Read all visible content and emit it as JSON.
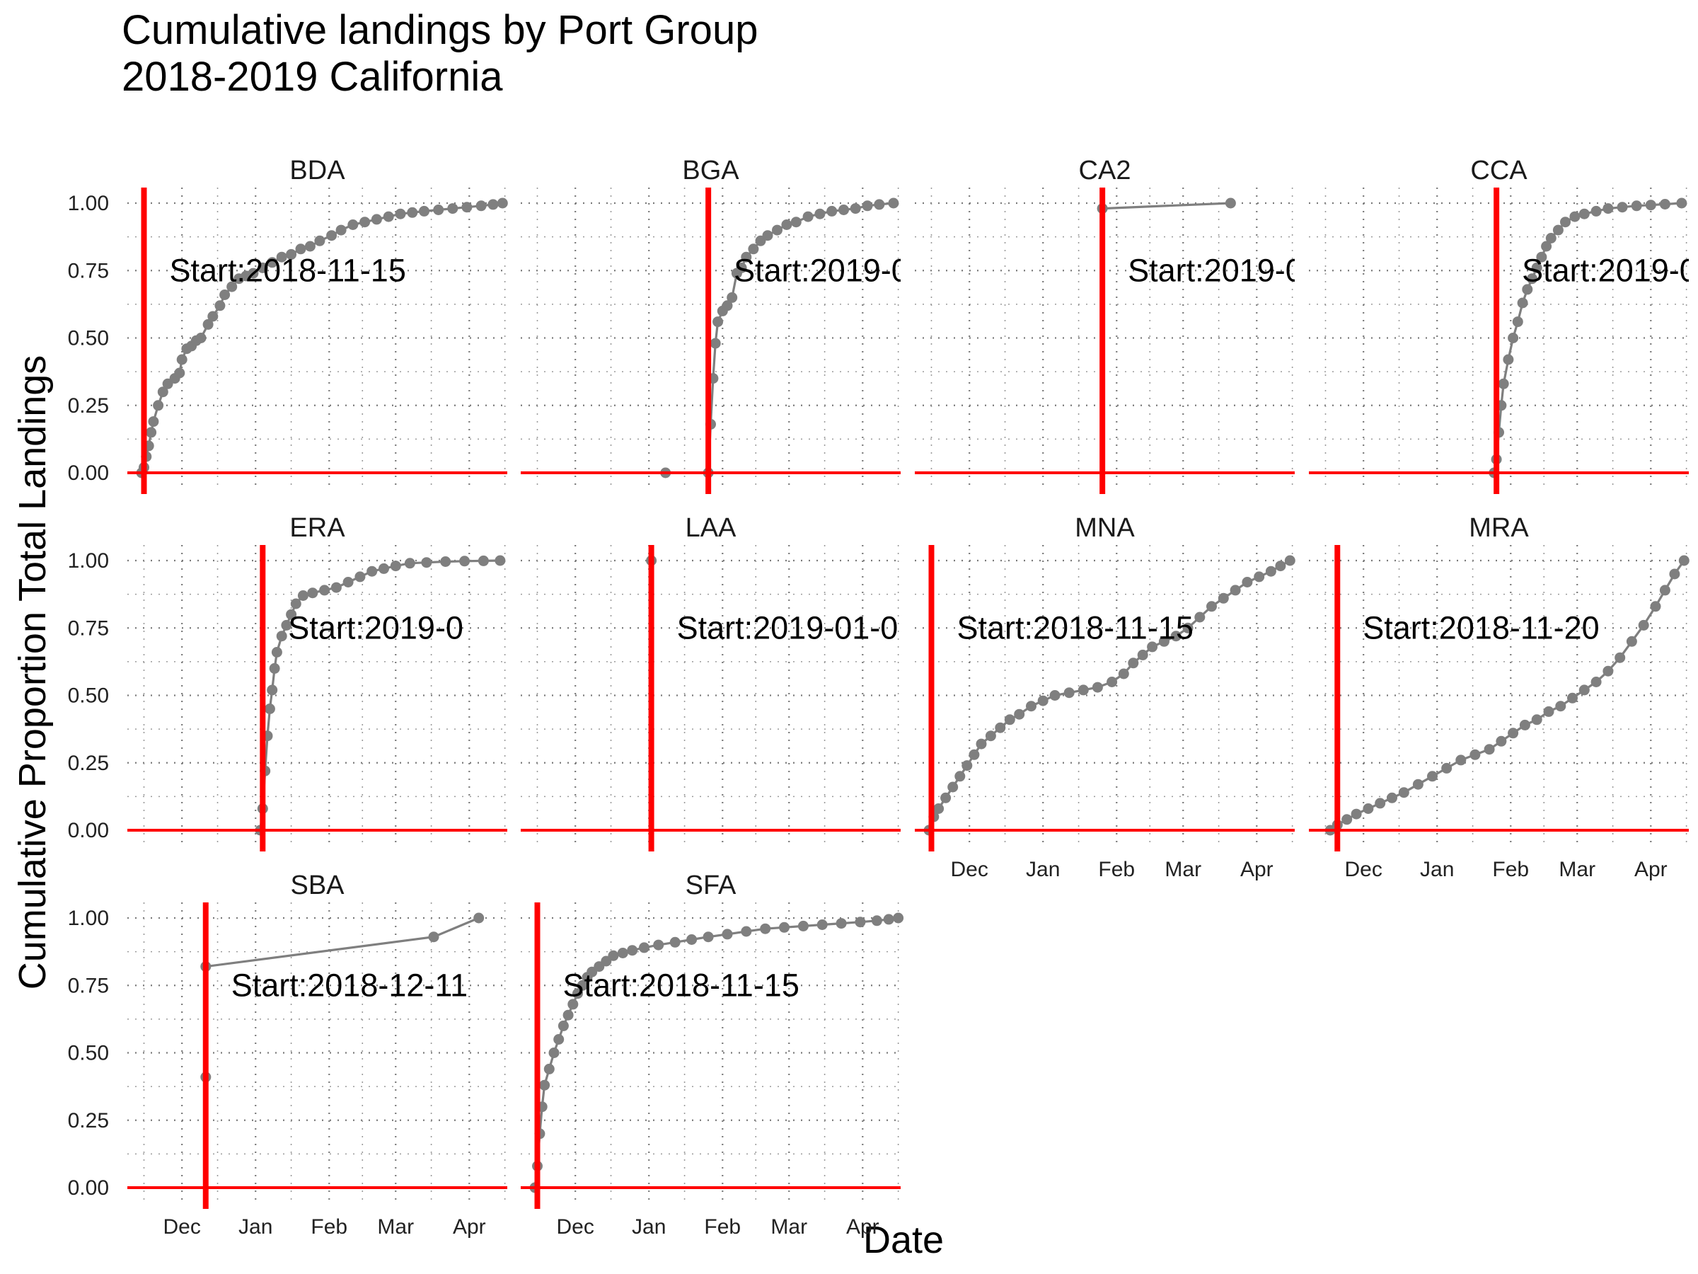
{
  "title": "Cumulative landings by Port Group",
  "subtitle": "2018-2019 California",
  "chart_data": {
    "type": "line",
    "title": "Cumulative landings by Port Group",
    "subtitle": "2018-2019 California",
    "xlabel": "Date",
    "ylabel": "Cumulative Proportion Total Landings",
    "xlim": [
      "2018-11-08",
      "2019-04-17"
    ],
    "ylim": [
      0,
      1
    ],
    "x_ticks": [
      {
        "date": "2018-12-01",
        "label": "Dec"
      },
      {
        "date": "2019-01-01",
        "label": "Jan"
      },
      {
        "date": "2019-02-01",
        "label": "Feb"
      },
      {
        "date": "2019-03-01",
        "label": "Mar"
      },
      {
        "date": "2019-04-01",
        "label": "Apr"
      }
    ],
    "y_ticks": [
      "0.00",
      "0.25",
      "0.50",
      "0.75",
      "1.00"
    ],
    "grid": true,
    "colors": {
      "series": "#7f7f7f",
      "reference": "#ff0000"
    },
    "panels": [
      {
        "name": "BDA",
        "start_date": "2018-11-15",
        "annotation": "Start:2018-11-15",
        "points": [
          [
            "2018-11-14",
            0.0
          ],
          [
            "2018-11-15",
            0.02
          ],
          [
            "2018-11-16",
            0.06
          ],
          [
            "2018-11-17",
            0.1
          ],
          [
            "2018-11-18",
            0.15
          ],
          [
            "2018-11-19",
            0.19
          ],
          [
            "2018-11-21",
            0.25
          ],
          [
            "2018-11-23",
            0.3
          ],
          [
            "2018-11-25",
            0.33
          ],
          [
            "2018-11-28",
            0.35
          ],
          [
            "2018-11-30",
            0.37
          ],
          [
            "2018-12-01",
            0.42
          ],
          [
            "2018-12-03",
            0.46
          ],
          [
            "2018-12-05",
            0.47
          ],
          [
            "2018-12-07",
            0.49
          ],
          [
            "2018-12-09",
            0.5
          ],
          [
            "2018-12-12",
            0.55
          ],
          [
            "2018-12-14",
            0.58
          ],
          [
            "2018-12-17",
            0.62
          ],
          [
            "2018-12-19",
            0.66
          ],
          [
            "2018-12-22",
            0.69
          ],
          [
            "2018-12-25",
            0.72
          ],
          [
            "2018-12-28",
            0.73
          ],
          [
            "2018-12-31",
            0.74
          ],
          [
            "2019-01-04",
            0.76
          ],
          [
            "2019-01-08",
            0.78
          ],
          [
            "2019-01-12",
            0.8
          ],
          [
            "2019-01-16",
            0.81
          ],
          [
            "2019-01-20",
            0.83
          ],
          [
            "2019-01-24",
            0.84
          ],
          [
            "2019-01-28",
            0.86
          ],
          [
            "2019-02-02",
            0.88
          ],
          [
            "2019-02-06",
            0.9
          ],
          [
            "2019-02-11",
            0.92
          ],
          [
            "2019-02-16",
            0.93
          ],
          [
            "2019-02-21",
            0.94
          ],
          [
            "2019-02-26",
            0.95
          ],
          [
            "2019-03-03",
            0.96
          ],
          [
            "2019-03-08",
            0.965
          ],
          [
            "2019-03-13",
            0.97
          ],
          [
            "2019-03-19",
            0.975
          ],
          [
            "2019-03-25",
            0.98
          ],
          [
            "2019-03-31",
            0.985
          ],
          [
            "2019-04-06",
            0.99
          ],
          [
            "2019-04-11",
            0.995
          ],
          [
            "2019-04-15",
            1.0
          ]
        ]
      },
      {
        "name": "BGA",
        "start_date": "2019-01-26",
        "annotation": "Start:2019-0",
        "points": [
          [
            "2019-01-08",
            0.0
          ],
          [
            "2019-01-26",
            0.0
          ],
          [
            "2019-01-27",
            0.18
          ],
          [
            "2019-01-28",
            0.35
          ],
          [
            "2019-01-29",
            0.48
          ],
          [
            "2019-01-30",
            0.56
          ],
          [
            "2019-02-01",
            0.6
          ],
          [
            "2019-02-03",
            0.62
          ],
          [
            "2019-02-05",
            0.65
          ],
          [
            "2019-02-07",
            0.74
          ],
          [
            "2019-02-09",
            0.76
          ],
          [
            "2019-02-11",
            0.8
          ],
          [
            "2019-02-14",
            0.83
          ],
          [
            "2019-02-17",
            0.86
          ],
          [
            "2019-02-20",
            0.88
          ],
          [
            "2019-02-24",
            0.9
          ],
          [
            "2019-02-28",
            0.92
          ],
          [
            "2019-03-04",
            0.93
          ],
          [
            "2019-03-09",
            0.95
          ],
          [
            "2019-03-14",
            0.96
          ],
          [
            "2019-03-19",
            0.97
          ],
          [
            "2019-03-24",
            0.975
          ],
          [
            "2019-03-29",
            0.98
          ],
          [
            "2019-04-03",
            0.99
          ],
          [
            "2019-04-08",
            0.995
          ],
          [
            "2019-04-14",
            1.0
          ]
        ]
      },
      {
        "name": "CA2",
        "start_date": "2019-01-26",
        "annotation": "Start:2019-0",
        "points": [
          [
            "2019-01-26",
            0.98
          ],
          [
            "2019-03-21",
            1.0
          ]
        ]
      },
      {
        "name": "CCA",
        "start_date": "2019-01-26",
        "annotation": "Start:2019-0",
        "points": [
          [
            "2019-01-25",
            0.0
          ],
          [
            "2019-01-26",
            0.05
          ],
          [
            "2019-01-27",
            0.15
          ],
          [
            "2019-01-28",
            0.25
          ],
          [
            "2019-01-29",
            0.33
          ],
          [
            "2019-01-31",
            0.42
          ],
          [
            "2019-02-02",
            0.5
          ],
          [
            "2019-02-04",
            0.56
          ],
          [
            "2019-02-06",
            0.63
          ],
          [
            "2019-02-08",
            0.68
          ],
          [
            "2019-02-10",
            0.72
          ],
          [
            "2019-02-12",
            0.76
          ],
          [
            "2019-02-14",
            0.8
          ],
          [
            "2019-02-16",
            0.84
          ],
          [
            "2019-02-18",
            0.87
          ],
          [
            "2019-02-21",
            0.9
          ],
          [
            "2019-02-24",
            0.93
          ],
          [
            "2019-02-28",
            0.95
          ],
          [
            "2019-03-04",
            0.96
          ],
          [
            "2019-03-09",
            0.97
          ],
          [
            "2019-03-14",
            0.98
          ],
          [
            "2019-03-20",
            0.985
          ],
          [
            "2019-03-26",
            0.99
          ],
          [
            "2019-04-01",
            0.993
          ],
          [
            "2019-04-07",
            0.996
          ],
          [
            "2019-04-14",
            1.0
          ]
        ]
      },
      {
        "name": "ERA",
        "start_date": "2019-01-04",
        "annotation": "Start:2019-0",
        "points": [
          [
            "2019-01-03",
            0.0
          ],
          [
            "2019-01-04",
            0.08
          ],
          [
            "2019-01-05",
            0.22
          ],
          [
            "2019-01-06",
            0.35
          ],
          [
            "2019-01-07",
            0.45
          ],
          [
            "2019-01-08",
            0.52
          ],
          [
            "2019-01-09",
            0.6
          ],
          [
            "2019-01-10",
            0.66
          ],
          [
            "2019-01-12",
            0.72
          ],
          [
            "2019-01-14",
            0.76
          ],
          [
            "2019-01-16",
            0.8
          ],
          [
            "2019-01-18",
            0.84
          ],
          [
            "2019-01-21",
            0.87
          ],
          [
            "2019-01-25",
            0.88
          ],
          [
            "2019-01-30",
            0.89
          ],
          [
            "2019-02-04",
            0.9
          ],
          [
            "2019-02-09",
            0.92
          ],
          [
            "2019-02-14",
            0.94
          ],
          [
            "2019-02-19",
            0.96
          ],
          [
            "2019-02-24",
            0.97
          ],
          [
            "2019-03-01",
            0.98
          ],
          [
            "2019-03-07",
            0.99
          ],
          [
            "2019-03-14",
            0.993
          ],
          [
            "2019-03-22",
            0.996
          ],
          [
            "2019-03-30",
            0.998
          ],
          [
            "2019-04-07",
            0.999
          ],
          [
            "2019-04-14",
            1.0
          ]
        ]
      },
      {
        "name": "LAA",
        "start_date": "2019-01-02",
        "annotation": "Start:2019-01-0",
        "points": [
          [
            "2019-01-02",
            1.0
          ]
        ]
      },
      {
        "name": "MNA",
        "start_date": "2018-11-15",
        "annotation": "Start:2018-11-15",
        "points": [
          [
            "2018-11-14",
            0.0
          ],
          [
            "2018-11-16",
            0.05
          ],
          [
            "2018-11-18",
            0.08
          ],
          [
            "2018-11-21",
            0.12
          ],
          [
            "2018-11-24",
            0.16
          ],
          [
            "2018-11-27",
            0.2
          ],
          [
            "2018-11-30",
            0.24
          ],
          [
            "2018-12-03",
            0.28
          ],
          [
            "2018-12-06",
            0.32
          ],
          [
            "2018-12-10",
            0.35
          ],
          [
            "2018-12-14",
            0.38
          ],
          [
            "2018-12-18",
            0.41
          ],
          [
            "2018-12-22",
            0.43
          ],
          [
            "2018-12-27",
            0.46
          ],
          [
            "2019-01-01",
            0.48
          ],
          [
            "2019-01-06",
            0.5
          ],
          [
            "2019-01-12",
            0.51
          ],
          [
            "2019-01-18",
            0.52
          ],
          [
            "2019-01-24",
            0.53
          ],
          [
            "2019-01-30",
            0.55
          ],
          [
            "2019-02-04",
            0.58
          ],
          [
            "2019-02-08",
            0.62
          ],
          [
            "2019-02-12",
            0.65
          ],
          [
            "2019-02-16",
            0.68
          ],
          [
            "2019-02-21",
            0.7
          ],
          [
            "2019-02-26",
            0.72
          ],
          [
            "2019-03-03",
            0.75
          ],
          [
            "2019-03-08",
            0.79
          ],
          [
            "2019-03-13",
            0.83
          ],
          [
            "2019-03-18",
            0.86
          ],
          [
            "2019-03-23",
            0.89
          ],
          [
            "2019-03-28",
            0.92
          ],
          [
            "2019-04-02",
            0.94
          ],
          [
            "2019-04-07",
            0.96
          ],
          [
            "2019-04-11",
            0.98
          ],
          [
            "2019-04-15",
            1.0
          ]
        ]
      },
      {
        "name": "MRA",
        "start_date": "2018-11-20",
        "annotation": "Start:2018-11-20",
        "points": [
          [
            "2018-11-17",
            0.0
          ],
          [
            "2018-11-20",
            0.02
          ],
          [
            "2018-11-24",
            0.04
          ],
          [
            "2018-11-28",
            0.06
          ],
          [
            "2018-12-03",
            0.08
          ],
          [
            "2018-12-08",
            0.1
          ],
          [
            "2018-12-13",
            0.12
          ],
          [
            "2018-12-18",
            0.14
          ],
          [
            "2018-12-24",
            0.17
          ],
          [
            "2018-12-30",
            0.2
          ],
          [
            "2019-01-05",
            0.23
          ],
          [
            "2019-01-11",
            0.26
          ],
          [
            "2019-01-17",
            0.28
          ],
          [
            "2019-01-23",
            0.3
          ],
          [
            "2019-01-28",
            0.33
          ],
          [
            "2019-02-02",
            0.36
          ],
          [
            "2019-02-07",
            0.39
          ],
          [
            "2019-02-12",
            0.41
          ],
          [
            "2019-02-17",
            0.44
          ],
          [
            "2019-02-22",
            0.46
          ],
          [
            "2019-02-27",
            0.49
          ],
          [
            "2019-03-04",
            0.52
          ],
          [
            "2019-03-09",
            0.55
          ],
          [
            "2019-03-14",
            0.59
          ],
          [
            "2019-03-19",
            0.64
          ],
          [
            "2019-03-24",
            0.7
          ],
          [
            "2019-03-29",
            0.76
          ],
          [
            "2019-04-03",
            0.83
          ],
          [
            "2019-04-07",
            0.89
          ],
          [
            "2019-04-11",
            0.95
          ],
          [
            "2019-04-15",
            1.0
          ]
        ]
      },
      {
        "name": "SBA",
        "start_date": "2018-12-11",
        "annotation": "Start:2018-12-11",
        "points": [
          [
            "2018-12-11",
            0.41
          ],
          [
            "2018-12-11",
            0.82
          ],
          [
            "2019-03-17",
            0.93
          ],
          [
            "2019-04-05",
            1.0
          ]
        ]
      },
      {
        "name": "SFA",
        "start_date": "2018-11-15",
        "annotation": "Start:2018-11-15",
        "points": [
          [
            "2018-11-14",
            0.0
          ],
          [
            "2018-11-15",
            0.08
          ],
          [
            "2018-11-16",
            0.2
          ],
          [
            "2018-11-17",
            0.3
          ],
          [
            "2018-11-18",
            0.38
          ],
          [
            "2018-11-20",
            0.44
          ],
          [
            "2018-11-22",
            0.5
          ],
          [
            "2018-11-24",
            0.55
          ],
          [
            "2018-11-26",
            0.6
          ],
          [
            "2018-11-28",
            0.64
          ],
          [
            "2018-11-30",
            0.68
          ],
          [
            "2018-12-02",
            0.72
          ],
          [
            "2018-12-04",
            0.75
          ],
          [
            "2018-12-06",
            0.78
          ],
          [
            "2018-12-08",
            0.8
          ],
          [
            "2018-12-11",
            0.82
          ],
          [
            "2018-12-14",
            0.84
          ],
          [
            "2018-12-17",
            0.86
          ],
          [
            "2018-12-21",
            0.87
          ],
          [
            "2018-12-25",
            0.88
          ],
          [
            "2018-12-30",
            0.89
          ],
          [
            "2019-01-05",
            0.9
          ],
          [
            "2019-01-12",
            0.91
          ],
          [
            "2019-01-19",
            0.92
          ],
          [
            "2019-01-26",
            0.93
          ],
          [
            "2019-02-03",
            0.94
          ],
          [
            "2019-02-11",
            0.95
          ],
          [
            "2019-02-19",
            0.96
          ],
          [
            "2019-02-27",
            0.965
          ],
          [
            "2019-03-07",
            0.97
          ],
          [
            "2019-03-15",
            0.975
          ],
          [
            "2019-03-23",
            0.98
          ],
          [
            "2019-03-31",
            0.985
          ],
          [
            "2019-04-07",
            0.99
          ],
          [
            "2019-04-12",
            0.995
          ],
          [
            "2019-04-16",
            1.0
          ]
        ]
      }
    ]
  }
}
